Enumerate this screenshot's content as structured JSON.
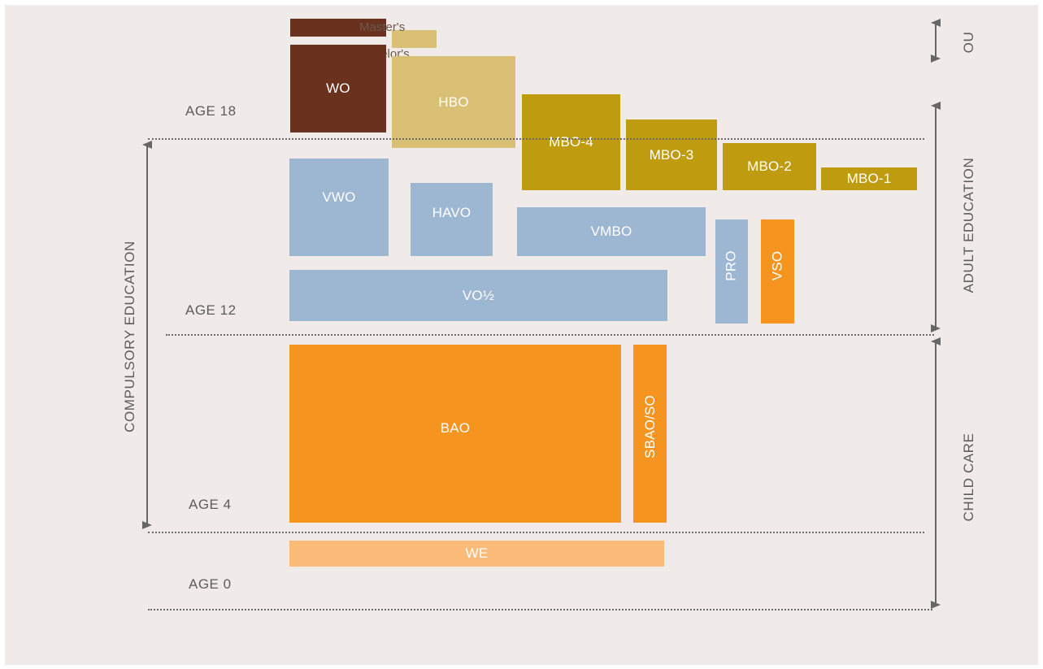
{
  "ages": {
    "age18": "AGE 18",
    "age12": "AGE 12",
    "age4": "AGE 4",
    "age0": "AGE 0"
  },
  "side_labels": {
    "compulsory": "COMPULSORY EDUCATION",
    "ou": "OU",
    "adult": "ADULT EDUCATION",
    "childcare": "CHILD CARE"
  },
  "degrees": {
    "masters": "Master's",
    "bachelors": "Bachelor's"
  },
  "blocks": {
    "wo": "WO",
    "hbo": "HBO",
    "mbo4": "MBO-4",
    "mbo3": "MBO-3",
    "mbo2": "MBO-2",
    "mbo1": "MBO-1",
    "vwo": "VWO",
    "havo": "HAVO",
    "vmbo": "VMBO",
    "pro": "PRO",
    "vso": "VSO",
    "vo": "VO½",
    "bao": "BAO",
    "sbao": "SBAO/SO",
    "we": "WE"
  },
  "colors": {
    "background": "#f0ebe9",
    "wo": "#6a311e",
    "hbo": "#d9c074",
    "mbo": "#bf9b10",
    "secondary": "#9db6d2",
    "primary": "#f5951f",
    "we": "#fbbb78",
    "text_grey": "#5c5c5c"
  }
}
